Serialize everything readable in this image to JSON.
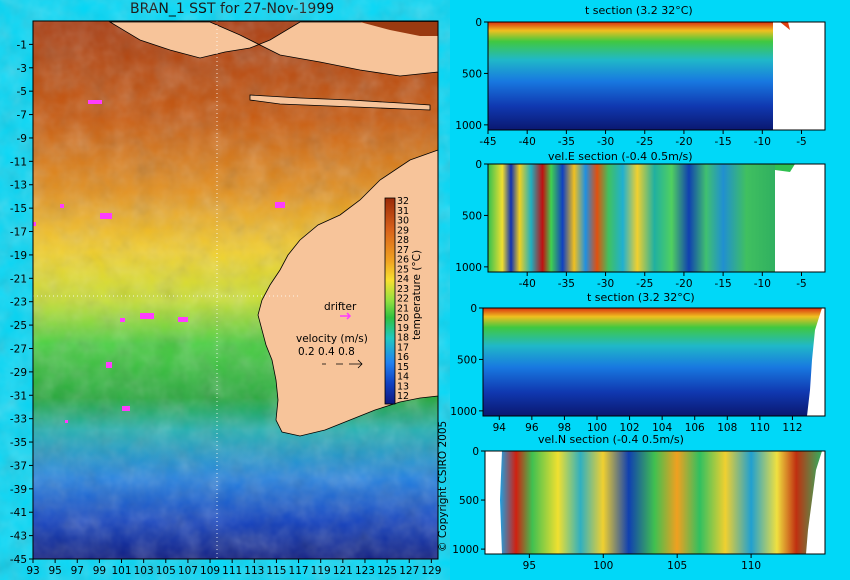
{
  "map": {
    "title": "BRAN_1 SST for 27-Nov-1999",
    "colorbar_label": "temperature (°C)",
    "colorbar_ticks": [
      "32",
      "31",
      "30",
      "29",
      "28",
      "27",
      "26",
      "25",
      "24",
      "23",
      "22",
      "21",
      "20",
      "19",
      "18",
      "17",
      "16",
      "15",
      "14",
      "13",
      "12"
    ],
    "drifter_label": "drifter",
    "velocity_label": "velocity (m/s)",
    "velocity_scale": "0.2 0.4 0.8",
    "lat_ticks": [
      "-1",
      "-3",
      "-5",
      "-7",
      "-9",
      "-11",
      "-13",
      "-15",
      "-17",
      "-19",
      "-21",
      "-23",
      "-25",
      "-27",
      "-29",
      "-31",
      "-33",
      "-35",
      "-37",
      "-39",
      "-41",
      "-43",
      "-45"
    ],
    "lon_ticks": [
      "93",
      "95",
      "97",
      "99",
      "101",
      "103",
      "105",
      "107",
      "109",
      "111",
      "113",
      "115",
      "117",
      "119",
      "121",
      "123",
      "125",
      "127",
      "129"
    ],
    "colors": {
      "land": "#f7c49a",
      "coast": "#000000",
      "drifter": "#ff3cff",
      "background": "#00d8f8"
    }
  },
  "panels": [
    {
      "title": "t section (3.2      32°C)",
      "x_ticks": [
        "-45",
        "-40",
        "-35",
        "-30",
        "-25",
        "-20",
        "-15",
        "-10",
        "-5"
      ],
      "y_ticks": [
        "0",
        "500",
        "1000"
      ]
    },
    {
      "title": "vel.E section (-0.4      0.5m/s)",
      "x_ticks": [
        "-40",
        "-35",
        "-30",
        "-25",
        "-20",
        "-15",
        "-10",
        "-5"
      ],
      "y_ticks": [
        "0",
        "500",
        "1000"
      ]
    },
    {
      "title": "t section (3.2      32°C)",
      "x_ticks": [
        "94",
        "96",
        "98",
        "100",
        "102",
        "104",
        "106",
        "108",
        "110",
        "112"
      ],
      "y_ticks": [
        "0",
        "500",
        "1000"
      ]
    },
    {
      "title": "vel.N section (-0.4      0.5m/s)",
      "x_ticks": [
        "95",
        "100",
        "105",
        "110"
      ],
      "y_ticks": [
        "0",
        "500",
        "1000"
      ]
    }
  ],
  "copyright": "© Copyright CSIRO 2005",
  "chart_data": [
    {
      "type": "heatmap",
      "title": "BRAN_1 SST for 27-Nov-1999",
      "xlabel": "",
      "ylabel": "",
      "xlim": [
        93,
        130
      ],
      "ylim": [
        -45,
        1
      ],
      "colorbar": {
        "label": "temperature (°C)",
        "range": [
          12,
          32
        ]
      }
    },
    {
      "type": "heatmap",
      "title": "t section (3.2      32°C)",
      "xlim": [
        -45,
        -2
      ],
      "ylim": [
        1050,
        0
      ]
    },
    {
      "type": "heatmap",
      "title": "vel.E section (-0.4      0.5m/s)",
      "xlim": [
        -45,
        -2
      ],
      "ylim": [
        1050,
        0
      ]
    },
    {
      "type": "heatmap",
      "title": "t section (3.2      32°C)",
      "xlim": [
        93,
        114
      ],
      "ylim": [
        1050,
        0
      ]
    },
    {
      "type": "heatmap",
      "title": "vel.N section (-0.4      0.5m/s)",
      "xlim": [
        92,
        115
      ],
      "ylim": [
        1050,
        0
      ]
    }
  ]
}
